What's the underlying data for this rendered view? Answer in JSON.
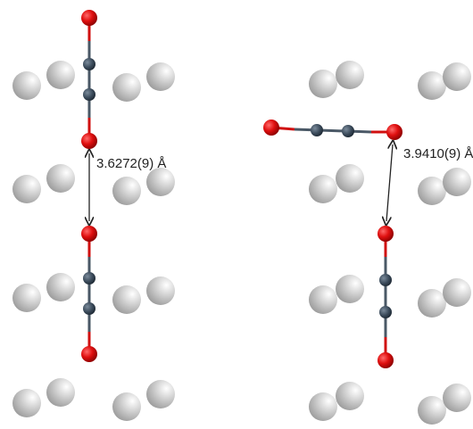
{
  "annotations": [
    {
      "label": "3.6272(9) Å"
    },
    {
      "label": "3.9410(9) Å"
    }
  ]
}
